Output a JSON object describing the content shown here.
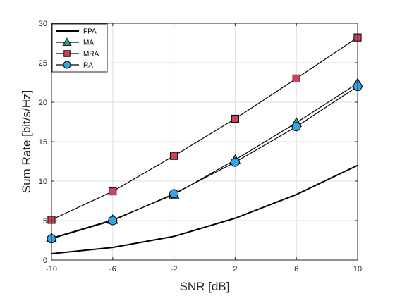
{
  "chart_data": {
    "type": "line",
    "xlabel": "SNR [dB]",
    "ylabel": "Sum Rate [bit/s/Hz]",
    "x": [
      -10,
      -6,
      -2,
      2,
      6,
      10
    ],
    "xticks": [
      -10,
      -6,
      -2,
      2,
      6,
      10
    ],
    "xtick_labels": [
      "-10",
      "-6",
      "-2",
      "2",
      "6",
      "10"
    ],
    "xlim": [
      -10,
      10
    ],
    "yticks": [
      0,
      5,
      10,
      15,
      20,
      25,
      30
    ],
    "ytick_labels": [
      "0",
      "5",
      "10",
      "15",
      "20",
      "25",
      "30"
    ],
    "ylim": [
      0,
      30
    ],
    "grid": true,
    "legend_position": "top-left",
    "series": [
      {
        "name": "FPA",
        "values": [
          0.8,
          1.6,
          3.0,
          5.3,
          8.3,
          12.0
        ],
        "marker": "none",
        "color": "#000000",
        "marker_fill": "none"
      },
      {
        "name": "MA",
        "values": [
          2.8,
          5.1,
          8.3,
          12.7,
          17.4,
          22.4
        ],
        "marker": "triangle",
        "color": "#000000",
        "marker_fill": "#2aa58a"
      },
      {
        "name": "MRA",
        "values": [
          5.1,
          8.7,
          13.2,
          17.9,
          23.0,
          28.2
        ],
        "marker": "square",
        "color": "#000000",
        "marker_fill": "#d0405a"
      },
      {
        "name": "RA",
        "values": [
          2.7,
          5.0,
          8.4,
          12.4,
          16.9,
          22.0
        ],
        "marker": "circle",
        "color": "#000000",
        "marker_fill": "#2ea6e8"
      }
    ]
  }
}
